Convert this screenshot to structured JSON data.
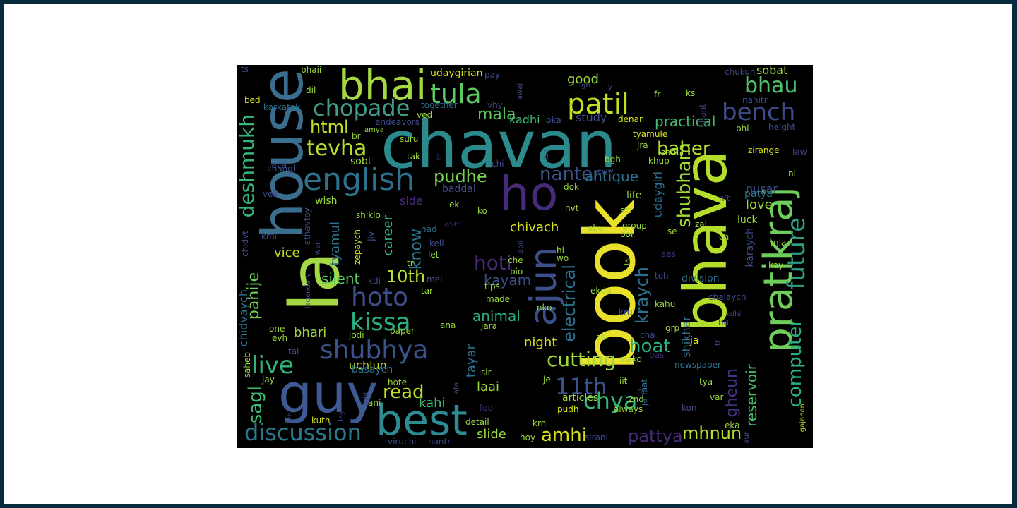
{
  "words": [
    {
      "text": "chavan",
      "color": "#2a8a8c",
      "size": 92
    },
    {
      "text": "la",
      "color": "#a6d844",
      "size": 96
    },
    {
      "text": "house",
      "color": "#3a6e8f",
      "size": 80
    },
    {
      "text": "bhai",
      "color": "#a6d844",
      "size": 58
    },
    {
      "text": "guy",
      "color": "#3d5a94",
      "size": 76
    },
    {
      "text": "best",
      "color": "#2c8b93",
      "size": 60
    },
    {
      "text": "book",
      "color": "#e8e02a",
      "size": 100
    },
    {
      "text": "ho",
      "color": "#472b7a",
      "size": 66
    },
    {
      "text": "bhava",
      "color": "#b5de2b",
      "size": 84
    },
    {
      "text": "pratikraj",
      "color": "#6fce5b",
      "size": 56
    },
    {
      "text": "ajun",
      "color": "#3c4f8a",
      "size": 52
    },
    {
      "text": "english",
      "color": "#2c728e",
      "size": 44
    },
    {
      "text": "patil",
      "color": "#c2df23",
      "size": 40
    },
    {
      "text": "tula",
      "color": "#5ec962",
      "size": 38
    },
    {
      "text": "chopade",
      "color": "#3f9c8a",
      "size": 32
    },
    {
      "text": "bench",
      "color": "#3e4c8a",
      "size": 34
    },
    {
      "text": "bhau",
      "color": "#4fc16b",
      "size": 30
    },
    {
      "text": "tevha",
      "color": "#b5de2b",
      "size": 30
    },
    {
      "text": "deshmukh",
      "color": "#35b779",
      "size": 28
    },
    {
      "text": "html",
      "color": "#c2df23",
      "size": 24
    },
    {
      "text": "mala",
      "color": "#5ec962",
      "size": 22
    },
    {
      "text": "pudhe",
      "color": "#7ad151",
      "size": 24
    },
    {
      "text": "nanter",
      "color": "#3a548c",
      "size": 26
    },
    {
      "text": "antique",
      "color": "#2e6e8e",
      "size": 20
    },
    {
      "text": "baher",
      "color": "#b5de2b",
      "size": 26
    },
    {
      "text": "shubham",
      "color": "#a0da39",
      "size": 26
    },
    {
      "text": "future",
      "color": "#2c9e86",
      "size": 34
    },
    {
      "text": "computer",
      "color": "#2ab07f",
      "size": 26
    },
    {
      "text": "reservoir",
      "color": "#4ac16d",
      "size": 20
    },
    {
      "text": "gheun",
      "color": "#46317e",
      "size": 22
    },
    {
      "text": "hoto",
      "color": "#3e4c8a",
      "size": 36
    },
    {
      "text": "kissa",
      "color": "#2ab07f",
      "size": 34
    },
    {
      "text": "shubhya",
      "color": "#3b528b",
      "size": 36
    },
    {
      "text": "live",
      "color": "#31b57b",
      "size": 34
    },
    {
      "text": "discussion",
      "color": "#2a788e",
      "size": 32
    },
    {
      "text": "read",
      "color": "#c2df23",
      "size": 26
    },
    {
      "text": "10th",
      "color": "#b5de2b",
      "size": 24
    },
    {
      "text": "pahije",
      "color": "#75d054",
      "size": 22
    },
    {
      "text": "sagl",
      "color": "#3fbc73",
      "size": 26
    },
    {
      "text": "hoti",
      "color": "#472b7a",
      "size": 28
    },
    {
      "text": "kraych",
      "color": "#2c728e",
      "size": 24
    },
    {
      "text": "electrical",
      "color": "#2c718e",
      "size": 24
    },
    {
      "text": "hoat",
      "color": "#2ab07f",
      "size": 26
    },
    {
      "text": "cutting",
      "color": "#a0da39",
      "size": 28
    },
    {
      "text": "11th",
      "color": "#3b528b",
      "size": 32
    },
    {
      "text": "chya",
      "color": "#35b779",
      "size": 32
    },
    {
      "text": "amhi",
      "color": "#d8e219",
      "size": 26
    },
    {
      "text": "mhnun",
      "color": "#b5de2b",
      "size": 24
    },
    {
      "text": "pattya",
      "color": "#472b7a",
      "size": 24
    },
    {
      "text": "know",
      "color": "#2c728e",
      "size": 22
    },
    {
      "text": "animal",
      "color": "#2ab07f",
      "size": 20
    },
    {
      "text": "kayam",
      "color": "#3e4c8a",
      "size": 20
    },
    {
      "text": "silent",
      "color": "#5ec962",
      "size": 20
    },
    {
      "text": "career",
      "color": "#2ab07f",
      "size": 18
    },
    {
      "text": "tyamul",
      "color": "#2c718e",
      "size": 18
    },
    {
      "text": "chivach",
      "color": "#d8e219",
      "size": 18
    },
    {
      "text": "night",
      "color": "#d8e219",
      "size": 18
    },
    {
      "text": "bhari",
      "color": "#9bd93c",
      "size": 18
    },
    {
      "text": "vice",
      "color": "#c2df23",
      "size": 18
    },
    {
      "text": "uchlun",
      "color": "#c2df23",
      "size": 16
    },
    {
      "text": "laai",
      "color": "#9bd93c",
      "size": 18
    },
    {
      "text": "kahi",
      "color": "#3fbc73",
      "size": 18
    },
    {
      "text": "slide",
      "color": "#9bd93c",
      "size": 18
    },
    {
      "text": "tayar",
      "color": "#2c718e",
      "size": 18
    },
    {
      "text": "study",
      "color": "#3e4c8a",
      "size": 16
    },
    {
      "text": "practical",
      "color": "#3fbc73",
      "size": 20
    },
    {
      "text": "good",
      "color": "#a0da39",
      "size": 18
    },
    {
      "text": "kadhi",
      "color": "#3fbc73",
      "size": 16
    },
    {
      "text": "udaygirian",
      "color": "#d8e219",
      "size": 14
    },
    {
      "text": "sobat",
      "color": "#9bd93c",
      "size": 16
    },
    {
      "text": "love",
      "color": "#9bd93c",
      "size": 18
    },
    {
      "text": "nusar",
      "color": "#3e4c8a",
      "size": 16
    },
    {
      "text": "shikhar",
      "color": "#2c718e",
      "size": 16
    },
    {
      "text": "udaygiri",
      "color": "#2c718e",
      "size": 16
    },
    {
      "text": "karaych",
      "color": "#3e4c8a",
      "size": 14
    },
    {
      "text": "chidvaych",
      "color": "#2c718e",
      "size": 16
    },
    {
      "text": "basaych",
      "color": "#2c718e",
      "size": 14
    },
    {
      "text": "endeavors",
      "color": "#3e4c8a",
      "size": 12
    },
    {
      "text": "together",
      "color": "#2c718e",
      "size": 12
    },
    {
      "text": "karkatak",
      "color": "#2c718e",
      "size": 12
    },
    {
      "text": "newspaper",
      "color": "#2c718e",
      "size": 12
    },
    {
      "text": "articles",
      "color": "#9bd93c",
      "size": 14
    },
    {
      "text": "jannat",
      "color": "#2c718e",
      "size": 12
    },
    {
      "text": "gajanan",
      "color": "#b5de2b",
      "size": 10
    },
    {
      "text": "division",
      "color": "#2c718e",
      "size": 14
    },
    {
      "text": "chalaych",
      "color": "#3e4c8a",
      "size": 12
    },
    {
      "text": "zirange",
      "color": "#d8e219",
      "size": 12
    },
    {
      "text": "legendary",
      "color": "#3e4c8a",
      "size": 10
    },
    {
      "text": "athavtoy",
      "color": "#3e4c8a",
      "size": 12
    },
    {
      "text": "zepaych",
      "color": "#d8e219",
      "size": 12
    },
    {
      "text": "chidvt",
      "color": "#3e4c8a",
      "size": 12
    },
    {
      "text": "wish",
      "color": "#9bd93c",
      "size": 14
    },
    {
      "text": "sobt",
      "color": "#9bd93c",
      "size": 14
    },
    {
      "text": "side",
      "color": "#472b7a",
      "size": 16
    },
    {
      "text": "ek",
      "color": "#9bd93c",
      "size": 12
    },
    {
      "text": "asel",
      "color": "#472b7a",
      "size": 12
    },
    {
      "text": "nad",
      "color": "#2c718e",
      "size": 12
    },
    {
      "text": "keli",
      "color": "#3e4c8a",
      "size": 12
    },
    {
      "text": "let",
      "color": "#9bd93c",
      "size": 12
    },
    {
      "text": "tri",
      "color": "#9bd93c",
      "size": 12
    },
    {
      "text": "mei",
      "color": "#3e4c8a",
      "size": 12
    },
    {
      "text": "tar",
      "color": "#9bd93c",
      "size": 12
    },
    {
      "text": "kdi",
      "color": "#3e4c8a",
      "size": 12
    },
    {
      "text": "made",
      "color": "#9bd93c",
      "size": 12
    },
    {
      "text": "tips",
      "color": "#9bd93c",
      "size": 12
    },
    {
      "text": "jara",
      "color": "#9bd93c",
      "size": 12
    },
    {
      "text": "ana",
      "color": "#9bd93c",
      "size": 12
    },
    {
      "text": "paper",
      "color": "#9bd93c",
      "size": 12
    },
    {
      "text": "jodi",
      "color": "#9bd93c",
      "size": 12
    },
    {
      "text": "one",
      "color": "#9bd93c",
      "size": 12
    },
    {
      "text": "evh",
      "color": "#9bd93c",
      "size": 12
    },
    {
      "text": "tai",
      "color": "#3e4c8a",
      "size": 12
    },
    {
      "text": "saheb",
      "color": "#9bd93c",
      "size": 12
    },
    {
      "text": "jay",
      "color": "#9bd93c",
      "size": 12
    },
    {
      "text": "9th",
      "color": "#3e4c8a",
      "size": 10
    },
    {
      "text": "kuth",
      "color": "#d8e219",
      "size": 12
    },
    {
      "text": "ani",
      "color": "#9bd93c",
      "size": 12
    },
    {
      "text": "lay",
      "color": "#3e4c8a",
      "size": 10
    },
    {
      "text": "nhi",
      "color": "#3e4c8a",
      "size": 10
    },
    {
      "text": "hote",
      "color": "#9bd93c",
      "size": 12
    },
    {
      "text": "viruchi",
      "color": "#3e4c8a",
      "size": 12
    },
    {
      "text": "nantr",
      "color": "#3e4c8a",
      "size": 12
    },
    {
      "text": "detail",
      "color": "#9bd93c",
      "size": 12
    },
    {
      "text": "fod",
      "color": "#472b7a",
      "size": 12
    },
    {
      "text": "ata",
      "color": "#3e4c8a",
      "size": 10
    },
    {
      "text": "sir",
      "color": "#9bd93c",
      "size": 12
    },
    {
      "text": "krn",
      "color": "#9bd93c",
      "size": 12
    },
    {
      "text": "hoy",
      "color": "#9bd93c",
      "size": 12
    },
    {
      "text": "sirani",
      "color": "#3e4c8a",
      "size": 12
    },
    {
      "text": "je",
      "color": "#9bd93c",
      "size": 12
    },
    {
      "text": "pudh",
      "color": "#d8e219",
      "size": 12
    },
    {
      "text": "always",
      "color": "#9bd93c",
      "size": 12
    },
    {
      "text": "2nd",
      "color": "#9bd93c",
      "size": 12
    },
    {
      "text": "ne",
      "color": "#3e4c8a",
      "size": 12
    },
    {
      "text": "iit",
      "color": "#9bd93c",
      "size": 12
    },
    {
      "text": "nako",
      "color": "#9bd93c",
      "size": 12
    },
    {
      "text": "asl",
      "color": "#9bd93c",
      "size": 12
    },
    {
      "text": "cha",
      "color": "#3e4c8a",
      "size": 12
    },
    {
      "text": "bas",
      "color": "#472b7a",
      "size": 12
    },
    {
      "text": "grp",
      "color": "#9bd93c",
      "size": 12
    },
    {
      "text": "kahu",
      "color": "#9bd93c",
      "size": 12
    },
    {
      "text": "mst",
      "color": "#9bd93c",
      "size": 12
    },
    {
      "text": "ja",
      "color": "#d8e219",
      "size": 14
    },
    {
      "text": "tr",
      "color": "#3e4c8a",
      "size": 10
    },
    {
      "text": "tya",
      "color": "#9bd93c",
      "size": 12
    },
    {
      "text": "var",
      "color": "#9bd93c",
      "size": 12
    },
    {
      "text": "kon",
      "color": "#3e4c8a",
      "size": 12
    },
    {
      "text": "eka",
      "color": "#9bd93c",
      "size": 12
    },
    {
      "text": "aur",
      "color": "#3e4c8a",
      "size": 10
    },
    {
      "text": "kdhi",
      "color": "#3e4c8a",
      "size": 10
    },
    {
      "text": "na",
      "color": "#3e4c8a",
      "size": 12
    },
    {
      "text": "kay",
      "color": "#9bd93c",
      "size": 12
    },
    {
      "text": "mla",
      "color": "#9bd93c",
      "size": 12
    },
    {
      "text": "luck",
      "color": "#9bd93c",
      "size": 14
    },
    {
      "text": "patya",
      "color": "#2c718e",
      "size": 14
    },
    {
      "text": "n't",
      "color": "#472b7a",
      "size": 12
    },
    {
      "text": "ni",
      "color": "#9bd93c",
      "size": 12
    },
    {
      "text": "law",
      "color": "#3e4c8a",
      "size": 12
    },
    {
      "text": "bhi",
      "color": "#9bd93c",
      "size": 12
    },
    {
      "text": "height",
      "color": "#3e4c8a",
      "size": 12
    },
    {
      "text": "nahitr",
      "color": "#3e4c8a",
      "size": 12
    },
    {
      "text": "chukun",
      "color": "#3e4c8a",
      "size": 12
    },
    {
      "text": "shant",
      "color": "#3e4c8a",
      "size": 12
    },
    {
      "text": "ks",
      "color": "#9bd93c",
      "size": 12
    },
    {
      "text": "fr",
      "color": "#9bd93c",
      "size": 12
    },
    {
      "text": "denar",
      "color": "#d8e219",
      "size": 12
    },
    {
      "text": "tyamule",
      "color": "#d8e219",
      "size": 12
    },
    {
      "text": "jra",
      "color": "#9bd93c",
      "size": 12
    },
    {
      "text": "zad",
      "color": "#9bd93c",
      "size": 12
    },
    {
      "text": "khup",
      "color": "#9bd93c",
      "size": 12
    },
    {
      "text": "bgh",
      "color": "#9bd93c",
      "size": 12
    },
    {
      "text": "eww",
      "color": "#3e4c8a",
      "size": 10
    },
    {
      "text": "dok",
      "color": "#9bd93c",
      "size": 12
    },
    {
      "text": "life",
      "color": "#9bd93c",
      "size": 14
    },
    {
      "text": "stt",
      "color": "#9bd93c",
      "size": 12
    },
    {
      "text": "nvt",
      "color": "#9bd93c",
      "size": 12
    },
    {
      "text": "abe",
      "color": "#9bd93c",
      "size": 12
    },
    {
      "text": "group",
      "color": "#9bd93c",
      "size": 12
    },
    {
      "text": "bol",
      "color": "#9bd93c",
      "size": 12
    },
    {
      "text": "zal",
      "color": "#9bd93c",
      "size": 12
    },
    {
      "text": "ch",
      "color": "#9bd93c",
      "size": 12
    },
    {
      "text": "se",
      "color": "#9bd93c",
      "size": 12
    },
    {
      "text": "aas",
      "color": "#472b7a",
      "size": 12
    },
    {
      "text": "toh",
      "color": "#3e4c8a",
      "size": 12
    },
    {
      "text": "lai",
      "color": "#9bd93c",
      "size": 10
    },
    {
      "text": "ekda",
      "color": "#9bd93c",
      "size": 12
    },
    {
      "text": "kru",
      "color": "#3e4c8a",
      "size": 12
    },
    {
      "text": "nko",
      "color": "#9bd93c",
      "size": 12
    },
    {
      "text": "bio",
      "color": "#9bd93c",
      "size": 12
    },
    {
      "text": "che",
      "color": "#9bd93c",
      "size": 12
    },
    {
      "text": "hi",
      "color": "#9bd93c",
      "size": 12
    },
    {
      "text": "wo",
      "color": "#9bd93c",
      "size": 12
    },
    {
      "text": "apli",
      "color": "#3e4c8a",
      "size": 10
    },
    {
      "text": "ko",
      "color": "#9bd93c",
      "size": 12
    },
    {
      "text": "baddal",
      "color": "#3e4c8a",
      "size": 14
    },
    {
      "text": "chi",
      "color": "#3e4c8a",
      "size": 12
    },
    {
      "text": "tsa",
      "color": "#3e4c8a",
      "size": 10
    },
    {
      "text": "tak",
      "color": "#9bd93c",
      "size": 12
    },
    {
      "text": "bt",
      "color": "#3e4c8a",
      "size": 10
    },
    {
      "text": "suru",
      "color": "#9bd93c",
      "size": 12
    },
    {
      "text": "br",
      "color": "#9bd93c",
      "size": 12
    },
    {
      "text": "amya",
      "color": "#9bd93c",
      "size": 10
    },
    {
      "text": "ved",
      "color": "#9bd93c",
      "size": 12
    },
    {
      "text": "vhy",
      "color": "#3e4c8a",
      "size": 12
    },
    {
      "text": "loka",
      "color": "#3e4c8a",
      "size": 12
    },
    {
      "text": "awaj",
      "color": "#3e4c8a",
      "size": 10
    },
    {
      "text": "dil",
      "color": "#9bd93c",
      "size": 12
    },
    {
      "text": "bhaii",
      "color": "#9bd93c",
      "size": 12
    },
    {
      "text": "pay",
      "color": "#3e4c8a",
      "size": 12
    },
    {
      "text": "gn",
      "color": "#3e4c8a",
      "size": 10
    },
    {
      "text": "iy",
      "color": "#3e4c8a",
      "size": 10
    },
    {
      "text": "ts",
      "color": "#3e4c8a",
      "size": 12
    },
    {
      "text": "bed",
      "color": "#d8e219",
      "size": 12
    },
    {
      "text": "changl",
      "color": "#3e4c8a",
      "size": 12
    },
    {
      "text": "java",
      "color": "#3e4c8a",
      "size": 12
    },
    {
      "text": "veli",
      "color": "#3e4c8a",
      "size": 12
    },
    {
      "text": "shiklo",
      "color": "#9bd93c",
      "size": 12
    },
    {
      "text": "kmi",
      "color": "#3e4c8a",
      "size": 12
    },
    {
      "text": "wari",
      "color": "#3e4c8a",
      "size": 10
    },
    {
      "text": "jiv",
      "color": "#3e4c8a",
      "size": 12
    }
  ]
}
